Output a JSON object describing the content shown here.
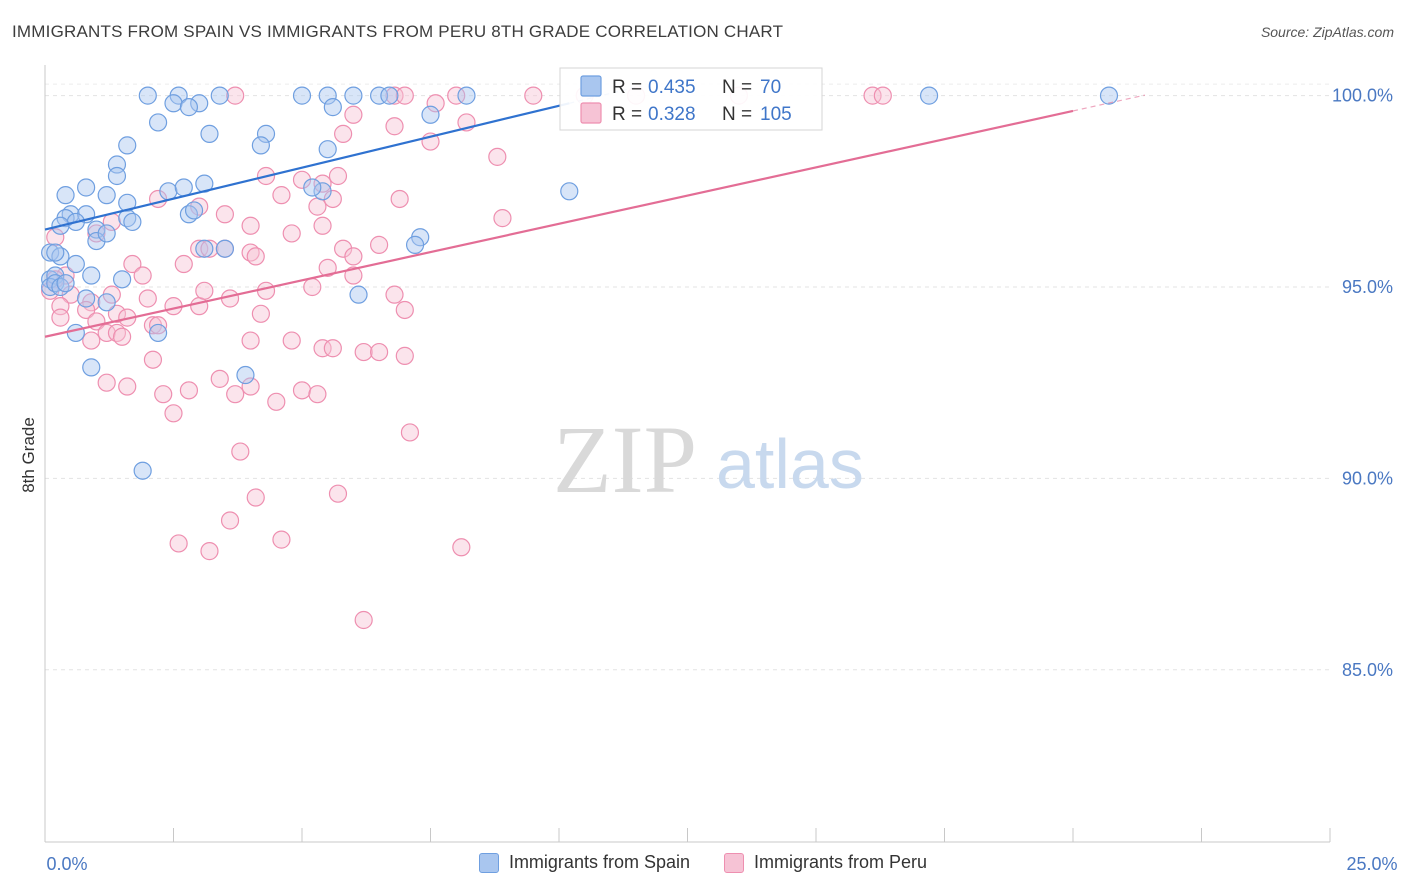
{
  "title": "IMMIGRANTS FROM SPAIN VS IMMIGRANTS FROM PERU 8TH GRADE CORRELATION CHART",
  "source": "Source: ZipAtlas.com",
  "watermark": {
    "zip": "ZIP",
    "atlas": "atlas"
  },
  "chart_data": {
    "type": "scatter",
    "xlabel": "",
    "ylabel": "8th Grade",
    "xlim": [
      0,
      25
    ],
    "ylim": [
      80.5,
      100.8
    ],
    "x_tick_labels": {
      "min": "0.0%",
      "max": "25.0%"
    },
    "y_ticks": [
      {
        "value": 100,
        "label": "100.0%"
      },
      {
        "value": 95,
        "label": "95.0%"
      },
      {
        "value": 90,
        "label": "90.0%"
      },
      {
        "value": 85,
        "label": "85.0%"
      }
    ],
    "grid": true,
    "legend_position": "top-center",
    "series": [
      {
        "name": "Immigrants from Spain",
        "color": "#6f9fe0",
        "fill": "#a9c6ef",
        "line_color": "#2f72d0",
        "R": "0.435",
        "N": "70",
        "trend": {
          "x": [
            0,
            10.2
          ],
          "y": [
            96.5,
            99.8
          ]
        },
        "points": [
          [
            2.0,
            100
          ],
          [
            2.6,
            100
          ],
          [
            3.4,
            100
          ],
          [
            2.5,
            99.8
          ],
          [
            3.0,
            99.8
          ],
          [
            2.8,
            99.7
          ],
          [
            5.0,
            100
          ],
          [
            5.5,
            100
          ],
          [
            6.0,
            100
          ],
          [
            6.5,
            100
          ],
          [
            6.7,
            100
          ],
          [
            8.2,
            100
          ],
          [
            17.2,
            100
          ],
          [
            20.7,
            100
          ],
          [
            2.2,
            99.3
          ],
          [
            3.2,
            99.0
          ],
          [
            4.3,
            99.0
          ],
          [
            5.6,
            99.7
          ],
          [
            5.5,
            98.6
          ],
          [
            4.2,
            98.7
          ],
          [
            1.6,
            98.7
          ],
          [
            1.4,
            98.2
          ],
          [
            1.4,
            97.9
          ],
          [
            2.4,
            97.5
          ],
          [
            3.1,
            97.7
          ],
          [
            2.7,
            97.6
          ],
          [
            5.4,
            97.5
          ],
          [
            5.2,
            97.6
          ],
          [
            0.4,
            97.4
          ],
          [
            0.8,
            97.6
          ],
          [
            1.2,
            97.4
          ],
          [
            1.6,
            97.2
          ],
          [
            0.5,
            96.9
          ],
          [
            0.8,
            96.9
          ],
          [
            0.4,
            96.8
          ],
          [
            0.6,
            96.7
          ],
          [
            1.6,
            96.8
          ],
          [
            2.8,
            96.9
          ],
          [
            2.9,
            97.0
          ],
          [
            0.3,
            96.6
          ],
          [
            1.0,
            96.5
          ],
          [
            1.0,
            96.2
          ],
          [
            1.2,
            96.4
          ],
          [
            1.7,
            96.7
          ],
          [
            3.1,
            96.0
          ],
          [
            3.5,
            96.0
          ],
          [
            7.3,
            96.3
          ],
          [
            7.2,
            96.1
          ],
          [
            10.2,
            97.5
          ],
          [
            0.1,
            95.9
          ],
          [
            0.3,
            95.8
          ],
          [
            0.2,
            95.9
          ],
          [
            0.1,
            95.2
          ],
          [
            0.2,
            95.3
          ],
          [
            0.6,
            95.6
          ],
          [
            0.1,
            95.0
          ],
          [
            0.2,
            95.1
          ],
          [
            0.3,
            95.0
          ],
          [
            0.4,
            95.1
          ],
          [
            0.9,
            95.3
          ],
          [
            1.5,
            95.2
          ],
          [
            1.2,
            94.6
          ],
          [
            0.8,
            94.7
          ],
          [
            6.1,
            94.8
          ],
          [
            0.6,
            93.8
          ],
          [
            2.2,
            93.8
          ],
          [
            3.9,
            92.7
          ],
          [
            0.9,
            92.9
          ],
          [
            1.9,
            90.2
          ],
          [
            7.5,
            99.5
          ]
        ]
      },
      {
        "name": "Immigrants from Peru",
        "color": "#ee8fb0",
        "fill": "#f6c3d5",
        "line_color": "#e36d95",
        "R": "0.328",
        "N": "105",
        "trend": {
          "x": [
            0,
            20
          ],
          "y": [
            93.7,
            99.6
          ]
        },
        "points": [
          [
            3.7,
            100
          ],
          [
            6.8,
            100
          ],
          [
            7.0,
            100
          ],
          [
            8.0,
            100
          ],
          [
            9.5,
            100
          ],
          [
            10.5,
            100
          ],
          [
            11.5,
            100
          ],
          [
            13.5,
            100
          ],
          [
            16.1,
            100
          ],
          [
            16.3,
            100
          ],
          [
            7.6,
            99.8
          ],
          [
            6.0,
            99.5
          ],
          [
            8.2,
            99.3
          ],
          [
            6.8,
            99.2
          ],
          [
            5.8,
            99.0
          ],
          [
            7.5,
            98.8
          ],
          [
            8.8,
            98.4
          ],
          [
            4.3,
            97.9
          ],
          [
            5.0,
            97.8
          ],
          [
            5.4,
            97.7
          ],
          [
            5.7,
            97.9
          ],
          [
            4.6,
            97.4
          ],
          [
            6.9,
            97.3
          ],
          [
            5.3,
            97.1
          ],
          [
            5.6,
            97.3
          ],
          [
            2.2,
            97.3
          ],
          [
            3.0,
            97.1
          ],
          [
            3.5,
            96.9
          ],
          [
            5.4,
            96.6
          ],
          [
            0.2,
            96.3
          ],
          [
            1.0,
            96.4
          ],
          [
            1.3,
            96.7
          ],
          [
            4.0,
            96.6
          ],
          [
            4.8,
            96.4
          ],
          [
            3.0,
            96.0
          ],
          [
            3.2,
            96.0
          ],
          [
            3.5,
            96.0
          ],
          [
            4.0,
            95.9
          ],
          [
            4.1,
            95.8
          ],
          [
            5.5,
            95.5
          ],
          [
            5.8,
            96.0
          ],
          [
            6.0,
            95.8
          ],
          [
            6.5,
            96.1
          ],
          [
            8.9,
            96.8
          ],
          [
            1.7,
            95.6
          ],
          [
            1.9,
            95.3
          ],
          [
            2.7,
            95.6
          ],
          [
            0.4,
            95.3
          ],
          [
            0.2,
            95.2
          ],
          [
            0.1,
            94.9
          ],
          [
            0.5,
            94.8
          ],
          [
            0.3,
            94.5
          ],
          [
            0.9,
            94.6
          ],
          [
            1.3,
            94.8
          ],
          [
            1.4,
            94.3
          ],
          [
            1.6,
            94.2
          ],
          [
            2.1,
            94.0
          ],
          [
            2.2,
            94.0
          ],
          [
            2.0,
            94.7
          ],
          [
            2.5,
            94.5
          ],
          [
            3.0,
            94.5
          ],
          [
            3.1,
            94.9
          ],
          [
            3.6,
            94.7
          ],
          [
            4.3,
            94.9
          ],
          [
            5.2,
            95.0
          ],
          [
            6.0,
            95.3
          ],
          [
            6.8,
            94.8
          ],
          [
            7.0,
            94.4
          ],
          [
            4.2,
            94.3
          ],
          [
            0.3,
            94.2
          ],
          [
            0.8,
            94.4
          ],
          [
            1.0,
            94.1
          ],
          [
            1.2,
            93.8
          ],
          [
            1.4,
            93.8
          ],
          [
            0.9,
            93.6
          ],
          [
            1.5,
            93.7
          ],
          [
            2.1,
            93.1
          ],
          [
            4.0,
            93.6
          ],
          [
            4.8,
            93.6
          ],
          [
            5.4,
            93.4
          ],
          [
            5.6,
            93.4
          ],
          [
            6.2,
            93.3
          ],
          [
            6.5,
            93.3
          ],
          [
            7.0,
            93.2
          ],
          [
            1.2,
            92.5
          ],
          [
            1.6,
            92.4
          ],
          [
            2.3,
            92.2
          ],
          [
            2.5,
            91.7
          ],
          [
            2.8,
            92.3
          ],
          [
            3.4,
            92.6
          ],
          [
            3.7,
            92.2
          ],
          [
            4.0,
            92.4
          ],
          [
            4.5,
            92.0
          ],
          [
            5.0,
            92.3
          ],
          [
            5.3,
            92.2
          ],
          [
            7.1,
            91.2
          ],
          [
            3.8,
            90.7
          ],
          [
            3.6,
            88.9
          ],
          [
            4.1,
            89.5
          ],
          [
            5.7,
            89.6
          ],
          [
            2.6,
            88.3
          ],
          [
            3.2,
            88.1
          ],
          [
            4.6,
            88.4
          ],
          [
            8.1,
            88.2
          ],
          [
            6.2,
            86.3
          ]
        ]
      }
    ]
  },
  "legend": {
    "r_label": "R =",
    "n_label": "N ="
  }
}
